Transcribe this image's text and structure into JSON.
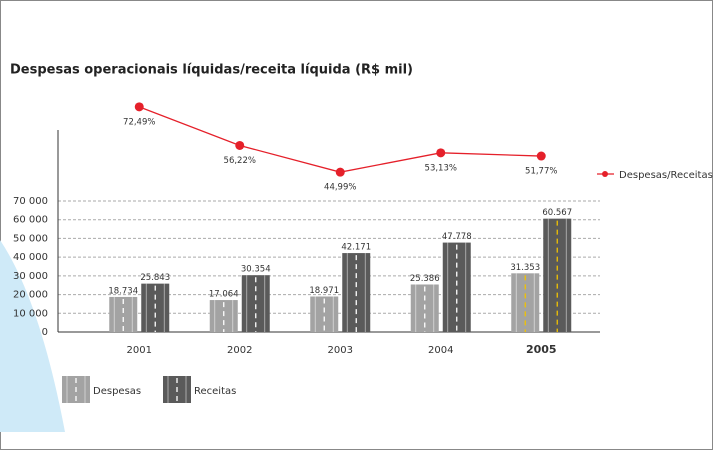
{
  "chart_data": {
    "type": "bar",
    "title": "Despesas operacionais líquidas/receita líquida (R$ mil)",
    "categories": [
      "2001",
      "2002",
      "2003",
      "2004",
      "2005"
    ],
    "highlight_index": 4,
    "series": [
      {
        "name": "Despesas",
        "color": "#a3a3a3",
        "values": [
          18734,
          17064,
          18971,
          25386,
          31353
        ],
        "value_labels": [
          "18.734",
          "17.064",
          "18.971",
          "25.386",
          "31.353"
        ]
      },
      {
        "name": "Receitas",
        "color": "#5a5a5a",
        "values": [
          25843,
          30354,
          42171,
          47778,
          60567
        ],
        "value_labels": [
          "25.843",
          "30.354",
          "42.171",
          "47.778",
          "60.567"
        ]
      },
      {
        "name": "Despesas/Receitas",
        "type": "line",
        "axis": "y2",
        "color": "#e5202a",
        "values": [
          72.49,
          56.22,
          44.99,
          53.13,
          51.77
        ],
        "value_labels": [
          "72,49%",
          "56,22%",
          "44,99%",
          "53,13%",
          "51,77%"
        ]
      }
    ],
    "ylim": [
      0,
      70000
    ],
    "yticks": [
      {
        "value": 0,
        "label": "0"
      },
      {
        "value": 10000,
        "label": "10 000"
      },
      {
        "value": 20000,
        "label": "20 000"
      },
      {
        "value": 30000,
        "label": "30 000"
      },
      {
        "value": 40000,
        "label": "40 000"
      },
      {
        "value": 50000,
        "label": "50 000"
      },
      {
        "value": 60000,
        "label": "60 000"
      },
      {
        "value": 70000,
        "label": "70 000"
      }
    ],
    "y2lim": [
      40,
      80
    ],
    "grid": true
  }
}
